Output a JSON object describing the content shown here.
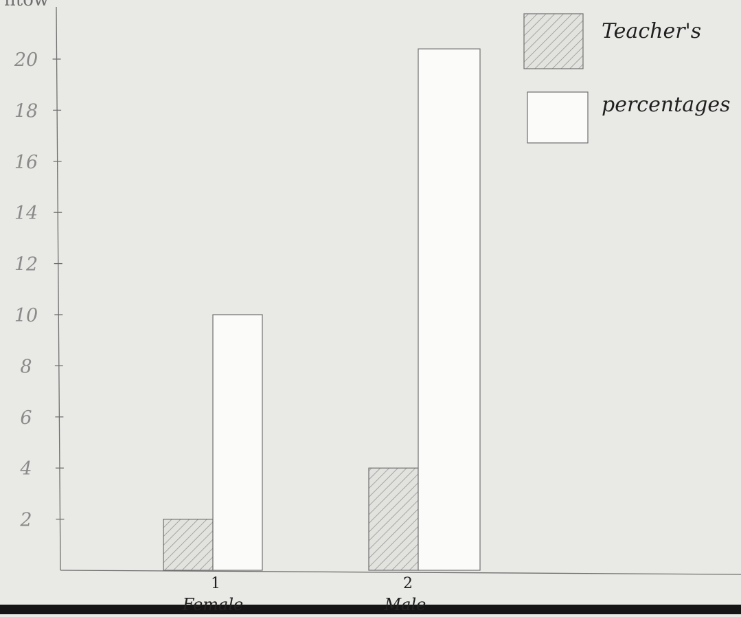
{
  "chart_data": {
    "type": "bar",
    "ylabel_fragment": "ntow",
    "categories": [
      "1",
      "2"
    ],
    "category_names": [
      "Female",
      "Male"
    ],
    "series": [
      {
        "name": "Teacher's",
        "values": [
          2,
          4
        ],
        "fill": "hatch"
      },
      {
        "name": "percentages",
        "values": [
          10,
          20.4
        ],
        "fill": "white"
      }
    ],
    "yticks": [
      2,
      4,
      6,
      8,
      10,
      12,
      14,
      16,
      18,
      20
    ],
    "ylim": [
      0,
      22
    ],
    "grid": false,
    "legend": "top-right",
    "colors": {
      "paper": "#e9e9e6",
      "ink": "#6f6f6f",
      "hatch": "#8a8a8a",
      "bar_white": "#fbfbfa",
      "bottom_edge": "#151515"
    }
  }
}
